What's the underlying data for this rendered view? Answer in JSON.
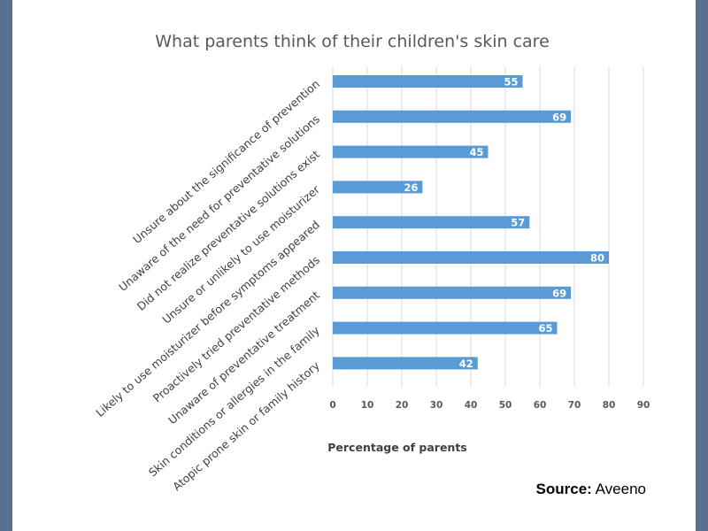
{
  "source": {
    "label": "Source:",
    "value": "Aveeno"
  },
  "chart_data": {
    "type": "bar",
    "orientation": "horizontal",
    "title": "What parents think of their children's skin care",
    "xlabel": "Percentage of parents",
    "ylabel": "",
    "xlim": [
      0,
      90
    ],
    "xticks": [
      0,
      10,
      20,
      30,
      40,
      50,
      60,
      70,
      80,
      90
    ],
    "grid": true,
    "bar_color": "#5b9bd5",
    "categories": [
      "Unsure about the significance of prevention",
      "Unaware of the need for preventative solutions",
      "Did not realize preventative solutions exist",
      "Unsure or unlikely to use moisturizer",
      "Likely to use moisturizer before symptoms appeared",
      "Proactively tried preventative methods",
      "Unaware of preventative treatment",
      "Skin conditions or allergies in the family",
      "Atopic prone skin or family history"
    ],
    "values": [
      55,
      69,
      45,
      26,
      57,
      80,
      69,
      65,
      42
    ]
  }
}
